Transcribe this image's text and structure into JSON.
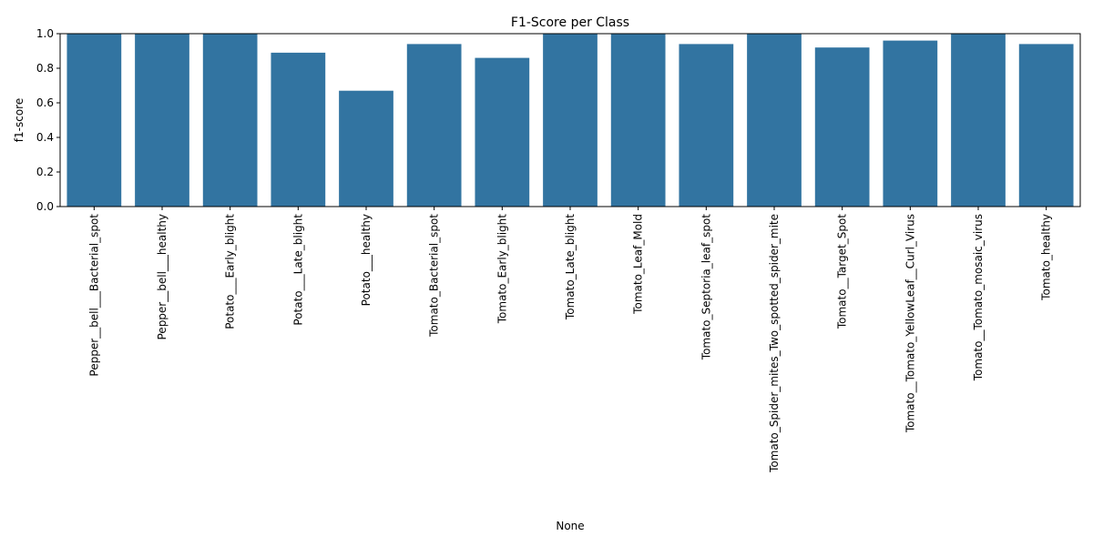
{
  "chart_data": {
    "type": "bar",
    "title": "F1-Score per Class",
    "xlabel": "None",
    "ylabel": "f1-score",
    "ylim": [
      0,
      1.0
    ],
    "yticks": [
      "0.0",
      "0.2",
      "0.4",
      "0.6",
      "0.8",
      "1.0"
    ],
    "grid": false,
    "bar_color": "#3274a1",
    "categories": [
      "Pepper__bell___Bacterial_spot",
      "Pepper__bell___healthy",
      "Potato___Early_blight",
      "Potato___Late_blight",
      "Potato___healthy",
      "Tomato_Bacterial_spot",
      "Tomato_Early_blight",
      "Tomato_Late_blight",
      "Tomato_Leaf_Mold",
      "Tomato_Septoria_leaf_spot",
      "Tomato_Spider_mites_Two_spotted_spider_mite",
      "Tomato__Target_Spot",
      "Tomato__Tomato_YellowLeaf__Curl_Virus",
      "Tomato__Tomato_mosaic_virus",
      "Tomato_healthy"
    ],
    "values": [
      1.0,
      1.0,
      1.0,
      0.89,
      0.67,
      0.94,
      0.86,
      1.0,
      1.0,
      0.94,
      1.0,
      0.92,
      0.96,
      1.0,
      0.94
    ]
  }
}
